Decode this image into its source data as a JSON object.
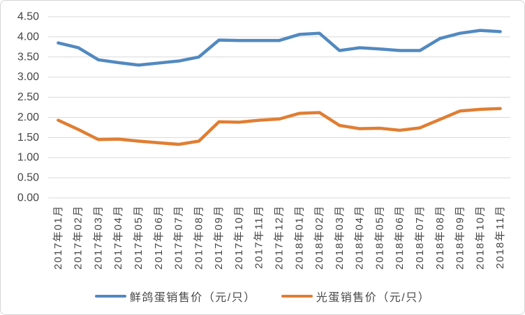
{
  "chart_data": {
    "type": "line",
    "categories": [
      "2017年01月",
      "2017年02月",
      "2017年03月",
      "2017年04月",
      "2017年05月",
      "2017年06月",
      "2017年07月",
      "2017年08月",
      "2017年09月",
      "2017年10月",
      "2017年11月",
      "2017年12月",
      "2018年01月",
      "2018年02月",
      "2018年03月",
      "2018年04月",
      "2018年05月",
      "2018年06月",
      "2018年07月",
      "2018年08月",
      "2018年09月",
      "2018年10月",
      "2018年11月"
    ],
    "series": [
      {
        "name": "鲜鸽蛋销售价（元/只）",
        "color": "#5289c0",
        "values": [
          3.85,
          3.73,
          3.43,
          3.36,
          3.3,
          3.35,
          3.4,
          3.5,
          3.92,
          3.91,
          3.91,
          3.91,
          4.06,
          4.09,
          3.66,
          3.73,
          3.7,
          3.66,
          3.66,
          3.96,
          4.09,
          4.16,
          4.13
        ]
      },
      {
        "name": "光蛋销售价（元/只）",
        "color": "#e07e33",
        "values": [
          1.93,
          1.7,
          1.45,
          1.46,
          1.41,
          1.37,
          1.33,
          1.41,
          1.89,
          1.88,
          1.93,
          1.96,
          2.1,
          2.12,
          1.8,
          1.72,
          1.73,
          1.68,
          1.74,
          1.95,
          2.16,
          2.2,
          2.22
        ]
      }
    ],
    "ylim": [
      0,
      4.5
    ],
    "ytick_step": 0.5,
    "ytick_labels": [
      "0.00",
      "0.50",
      "1.00",
      "1.50",
      "2.00",
      "2.50",
      "3.00",
      "3.50",
      "4.00",
      "4.50"
    ],
    "grid": "horizontal",
    "legend_position": "bottom"
  },
  "colors": {
    "grid": "#d9d9d9",
    "axis_text": "#454545",
    "border": "#d5d5d5",
    "background": "#ffffff"
  }
}
